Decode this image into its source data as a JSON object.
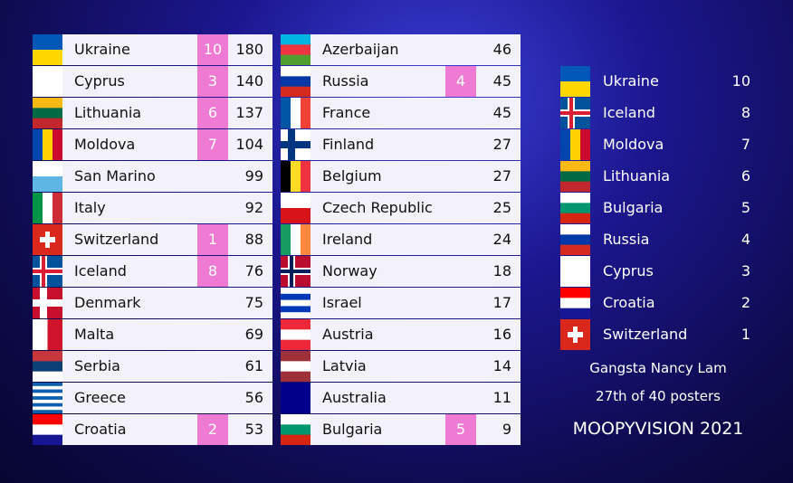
{
  "scoreboard": {
    "columns": [
      [
        {
          "country": "Ukraine",
          "points": 10,
          "total": 180
        },
        {
          "country": "Cyprus",
          "points": 3,
          "total": 140
        },
        {
          "country": "Lithuania",
          "points": 6,
          "total": 137
        },
        {
          "country": "Moldova",
          "points": 7,
          "total": 104
        },
        {
          "country": "San Marino",
          "total": 99
        },
        {
          "country": "Italy",
          "total": 92
        },
        {
          "country": "Switzerland",
          "points": 1,
          "total": 88
        },
        {
          "country": "Iceland",
          "points": 8,
          "total": 76
        },
        {
          "country": "Denmark",
          "total": 75
        },
        {
          "country": "Malta",
          "total": 69
        },
        {
          "country": "Serbia",
          "total": 61
        },
        {
          "country": "Greece",
          "total": 56
        },
        {
          "country": "Croatia",
          "points": 2,
          "total": 53
        }
      ],
      [
        {
          "country": "Azerbaijan",
          "total": 46
        },
        {
          "country": "Russia",
          "points": 4,
          "total": 45
        },
        {
          "country": "France",
          "total": 45
        },
        {
          "country": "Finland",
          "total": 27
        },
        {
          "country": "Belgium",
          "total": 27
        },
        {
          "country": "Czech Republic",
          "total": 25
        },
        {
          "country": "Ireland",
          "total": 24
        },
        {
          "country": "Norway",
          "total": 18
        },
        {
          "country": "Israel",
          "total": 17
        },
        {
          "country": "Austria",
          "total": 16
        },
        {
          "country": "Latvia",
          "total": 14
        },
        {
          "country": "Australia",
          "total": 11
        },
        {
          "country": "Bulgaria",
          "points": 5,
          "total": 9
        }
      ]
    ]
  },
  "votes": {
    "rows": [
      {
        "country": "Ukraine",
        "points": 10
      },
      {
        "country": "Iceland",
        "points": 8
      },
      {
        "country": "Moldova",
        "points": 7
      },
      {
        "country": "Lithuania",
        "points": 6
      },
      {
        "country": "Bulgaria",
        "points": 5
      },
      {
        "country": "Russia",
        "points": 4
      },
      {
        "country": "Cyprus",
        "points": 3
      },
      {
        "country": "Croatia",
        "points": 2
      },
      {
        "country": "Switzerland",
        "points": 1
      }
    ]
  },
  "poster": "Gangsta Nancy Lam",
  "rank": "27th of 40 posters",
  "event": "MOOPYVISION 2021"
}
